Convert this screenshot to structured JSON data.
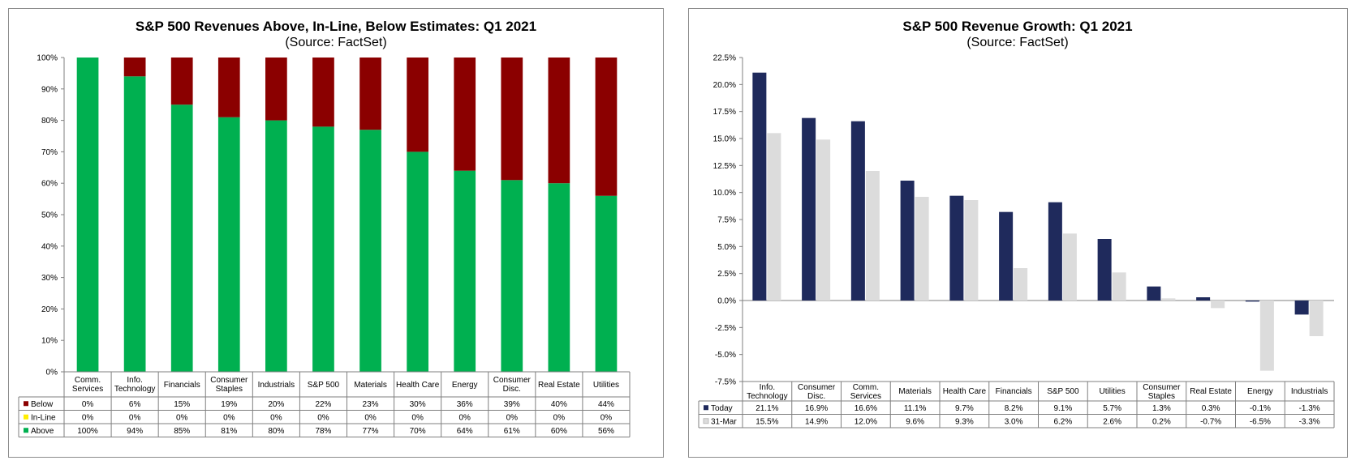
{
  "chart_data": [
    {
      "type": "bar",
      "stacked": true,
      "percent": true,
      "title": "S&P 500 Revenues Above, In-Line, Below Estimates: Q1 2021",
      "subtitle": "(Source: FactSet)",
      "categories": [
        "Comm. Services",
        "Info. Technology",
        "Financials",
        "Consumer Staples",
        "Industrials",
        "S&P 500",
        "Materials",
        "Health Care",
        "Energy",
        "Consumer Disc.",
        "Real Estate",
        "Utilities"
      ],
      "category_lines": [
        [
          "Comm.",
          "Services"
        ],
        [
          "Info.",
          "Technology"
        ],
        [
          "Financials"
        ],
        [
          "Consumer",
          "Staples"
        ],
        [
          "Industrials"
        ],
        [
          "S&P 500"
        ],
        [
          "Materials"
        ],
        [
          "Health Care"
        ],
        [
          "Energy"
        ],
        [
          "Consumer",
          "Disc."
        ],
        [
          "Real Estate"
        ],
        [
          "Utilities"
        ]
      ],
      "series": [
        {
          "name": "Below",
          "color": "#8b0000",
          "values": [
            0,
            6,
            15,
            19,
            20,
            22,
            23,
            30,
            36,
            39,
            40,
            44
          ],
          "labels": [
            "0%",
            "6%",
            "15%",
            "19%",
            "20%",
            "22%",
            "23%",
            "30%",
            "36%",
            "39%",
            "40%",
            "44%"
          ]
        },
        {
          "name": "In-Line",
          "color": "#ffee00",
          "values": [
            0,
            0,
            0,
            0,
            0,
            0,
            0,
            0,
            0,
            0,
            0,
            0
          ],
          "labels": [
            "0%",
            "0%",
            "0%",
            "0%",
            "0%",
            "0%",
            "0%",
            "0%",
            "0%",
            "0%",
            "0%",
            "0%"
          ]
        },
        {
          "name": "Above",
          "color": "#00b050",
          "values": [
            100,
            94,
            85,
            81,
            80,
            78,
            77,
            70,
            64,
            61,
            60,
            56
          ],
          "labels": [
            "100%",
            "94%",
            "85%",
            "81%",
            "80%",
            "78%",
            "77%",
            "70%",
            "64%",
            "61%",
            "60%",
            "56%"
          ]
        }
      ],
      "ylim": [
        0,
        100
      ],
      "yticks": [
        "0%",
        "10%",
        "20%",
        "30%",
        "40%",
        "50%",
        "60%",
        "70%",
        "80%",
        "90%",
        "100%"
      ],
      "grid": false,
      "legend": "data-table"
    },
    {
      "type": "bar",
      "title": "S&P 500 Revenue Growth: Q1 2021",
      "subtitle": "(Source: FactSet)",
      "categories": [
        "Info. Technology",
        "Consumer Disc.",
        "Comm. Services",
        "Materials",
        "Health Care",
        "Financials",
        "S&P 500",
        "Utilities",
        "Consumer Staples",
        "Real Estate",
        "Energy",
        "Industrials"
      ],
      "category_lines": [
        [
          "Info.",
          "Technology"
        ],
        [
          "Consumer",
          "Disc."
        ],
        [
          "Comm.",
          "Services"
        ],
        [
          "Materials"
        ],
        [
          "Health Care"
        ],
        [
          "Financials"
        ],
        [
          "S&P 500"
        ],
        [
          "Utilities"
        ],
        [
          "Consumer",
          "Staples"
        ],
        [
          "Real Estate"
        ],
        [
          "Energy"
        ],
        [
          "Industrials"
        ]
      ],
      "series": [
        {
          "name": "Today",
          "color": "#1f2a5c",
          "values": [
            21.1,
            16.9,
            16.6,
            11.1,
            9.7,
            8.2,
            9.1,
            5.7,
            1.3,
            0.3,
            -0.1,
            -1.3
          ],
          "labels": [
            "21.1%",
            "16.9%",
            "16.6%",
            "11.1%",
            "9.7%",
            "8.2%",
            "9.1%",
            "5.7%",
            "1.3%",
            "0.3%",
            "-0.1%",
            "-1.3%"
          ]
        },
        {
          "name": "31-Mar",
          "color": "#dcdcdc",
          "values": [
            15.5,
            14.9,
            12.0,
            9.6,
            9.3,
            3.0,
            6.2,
            2.6,
            0.2,
            -0.7,
            -6.5,
            -3.3
          ],
          "labels": [
            "15.5%",
            "14.9%",
            "12.0%",
            "9.6%",
            "9.3%",
            "3.0%",
            "6.2%",
            "2.6%",
            "0.2%",
            "-0.7%",
            "-6.5%",
            "-3.3%"
          ]
        }
      ],
      "ylim": [
        -7.5,
        22.5
      ],
      "yticks": [
        "-7.5%",
        "-5.0%",
        "-2.5%",
        "0.0%",
        "2.5%",
        "5.0%",
        "7.5%",
        "10.0%",
        "12.5%",
        "15.0%",
        "17.5%",
        "20.0%",
        "22.5%"
      ],
      "grid": false,
      "legend": "data-table"
    }
  ]
}
